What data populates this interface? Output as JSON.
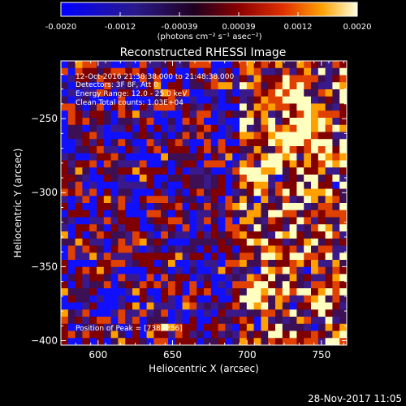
{
  "colorbar": {
    "ticks": [
      "-0.0020",
      "-0.0012",
      "-0.00039",
      "0.00039",
      "0.0012",
      "0.0020"
    ],
    "unit_label": "(photons cm⁻² s⁻¹ asec⁻²)"
  },
  "annotations": {
    "time_range": "12-Oct-2016 21:38:38.000 to 21:48:38.000",
    "detectors": "Detectors: 3F 8F, Att 0",
    "energy": "Energy Range: 12.0 - 25.0 keV",
    "clean": "Clean    Total counts: 1.03E+04",
    "peak": "Position of Peak = [738,-256]"
  },
  "footer_timestamp": "28-Nov-2017 11:05",
  "colors": {
    "background": "#000000",
    "frame": "#ffffff",
    "text": "#ffffff"
  },
  "chart_data": {
    "type": "heatmap",
    "title": "Reconstructed RHESSI Image",
    "xlabel": "Heliocentric X (arcsec)",
    "ylabel": "Heliocentric Y (arcsec)",
    "xlim": [
      575,
      767
    ],
    "ylim": [
      -403,
      -211
    ],
    "x_ticks": [
      600,
      650,
      700,
      750
    ],
    "y_ticks": [
      -250,
      -300,
      -350,
      -400
    ],
    "x_tick_labels": [
      "600",
      "650",
      "700",
      "750"
    ],
    "y_tick_labels": [
      "-250",
      "-300",
      "-350",
      "-400"
    ],
    "colormap": [
      "#1010ff",
      "#3a1a8a",
      "#3d0f55",
      "#800000",
      "#e04000",
      "#ffa000",
      "#ffffc0"
    ],
    "color_range": [
      -0.002,
      0.002
    ],
    "peak": [
      738,
      -256
    ],
    "grid": false
  }
}
